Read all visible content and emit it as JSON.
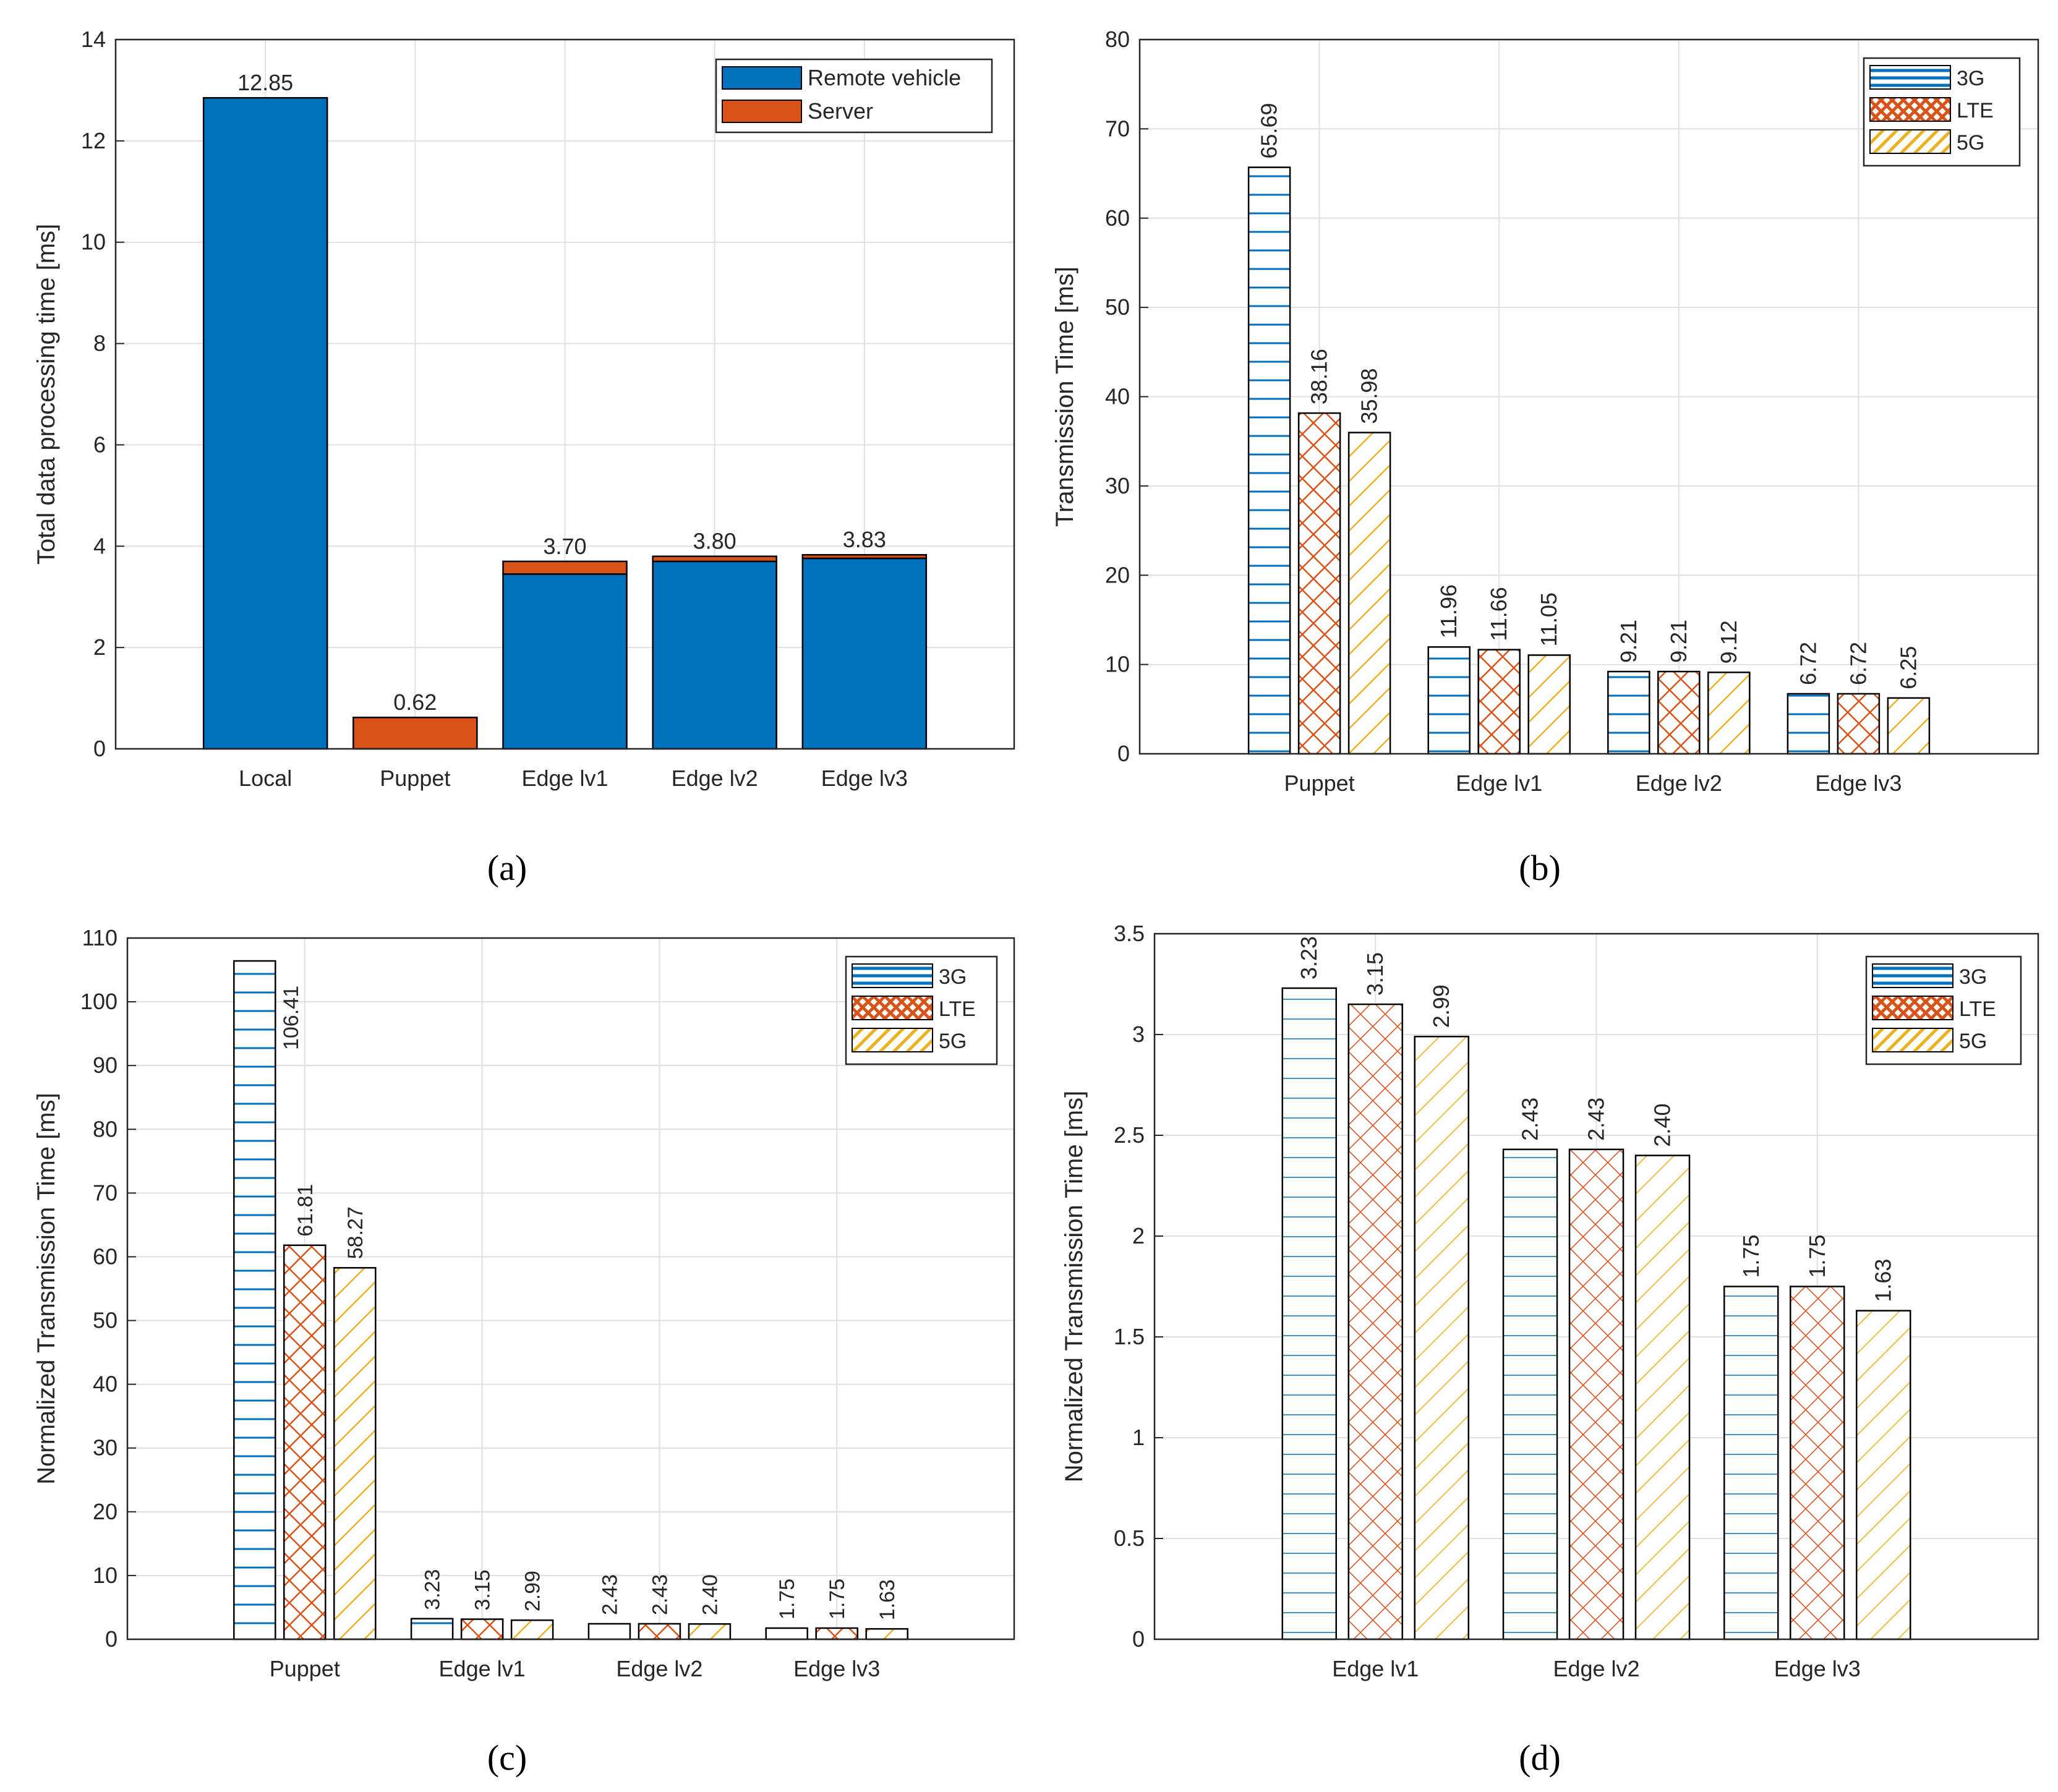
{
  "colors": {
    "remote_vehicle": "#0072BD",
    "server": "#D95319",
    "g3": "#0072BD",
    "lte": "#D95319",
    "g5": "#EDB120",
    "grid": "#E0E0E0",
    "axis": "#262626"
  },
  "chart_data": [
    {
      "id": "a",
      "panel_label": "(a)",
      "type": "bar",
      "stacked": true,
      "categories": [
        "Local",
        "Puppet",
        "Edge lv1",
        "Edge lv2",
        "Edge lv3"
      ],
      "series": [
        {
          "name": "Remote vehicle",
          "values": [
            12.85,
            0,
            3.45,
            3.7,
            3.76
          ]
        },
        {
          "name": "Server",
          "values": [
            0,
            0.62,
            0.25,
            0.1,
            0.07
          ]
        }
      ],
      "data_labels": [
        "12.85",
        "0.62",
        "3.70",
        "3.80",
        "3.83"
      ],
      "ylabel": "Total data processing time [ms]",
      "xlabel": "",
      "ylim": [
        0,
        14
      ],
      "yticks": [
        "0",
        "2",
        "4",
        "6",
        "8",
        "10",
        "12",
        "14"
      ],
      "grid": true,
      "legend": "top-right"
    },
    {
      "id": "b",
      "panel_label": "(b)",
      "type": "bar",
      "categories": [
        "Puppet",
        "Edge lv1",
        "Edge lv2",
        "Edge lv3"
      ],
      "series": [
        {
          "name": "3G",
          "values": [
            65.69,
            11.96,
            9.21,
            6.72
          ],
          "labels": [
            "65.69",
            "11.96",
            "9.21",
            "6.72"
          ]
        },
        {
          "name": "LTE",
          "values": [
            38.16,
            11.66,
            9.21,
            6.72
          ],
          "labels": [
            "38.16",
            "11.66",
            "9.21",
            "6.72"
          ]
        },
        {
          "name": "5G",
          "values": [
            35.98,
            11.05,
            9.12,
            6.25
          ],
          "labels": [
            "35.98",
            "11.05",
            "9.12",
            "6.25"
          ]
        }
      ],
      "ylabel": "Transmission Time [ms]",
      "xlabel": "",
      "ylim": [
        0,
        80
      ],
      "yticks": [
        "0",
        "10",
        "20",
        "30",
        "40",
        "50",
        "60",
        "70",
        "80"
      ],
      "grid": true,
      "legend": "top-right"
    },
    {
      "id": "c",
      "panel_label": "(c)",
      "type": "bar",
      "categories": [
        "Puppet",
        "Edge lv1",
        "Edge lv2",
        "Edge lv3"
      ],
      "series": [
        {
          "name": "3G",
          "values": [
            106.41,
            3.23,
            2.43,
            1.75
          ],
          "labels": [
            "106.41",
            "3.23",
            "2.43",
            "1.75"
          ]
        },
        {
          "name": "LTE",
          "values": [
            61.81,
            3.15,
            2.43,
            1.75
          ],
          "labels": [
            "61.81",
            "3.15",
            "2.43",
            "1.75"
          ]
        },
        {
          "name": "5G",
          "values": [
            58.27,
            2.99,
            2.4,
            1.63
          ],
          "labels": [
            "58.27",
            "2.99",
            "2.40",
            "1.63"
          ]
        }
      ],
      "ylabel": "Normalized Transmission Time [ms]",
      "xlabel": "",
      "ylim": [
        0,
        110
      ],
      "yticks": [
        "0",
        "10",
        "20",
        "30",
        "40",
        "50",
        "60",
        "70",
        "80",
        "90",
        "100",
        "110"
      ],
      "grid": true,
      "legend": "top-right"
    },
    {
      "id": "d",
      "panel_label": "(d)",
      "type": "bar",
      "categories": [
        "Edge lv1",
        "Edge lv2",
        "Edge lv3"
      ],
      "series": [
        {
          "name": "3G",
          "values": [
            3.23,
            2.43,
            1.75
          ],
          "labels": [
            "3.23",
            "2.43",
            "1.75"
          ]
        },
        {
          "name": "LTE",
          "values": [
            3.15,
            2.43,
            1.75
          ],
          "labels": [
            "3.15",
            "2.43",
            "1.75"
          ]
        },
        {
          "name": "5G",
          "values": [
            2.99,
            2.4,
            1.63
          ],
          "labels": [
            "2.99",
            "2.40",
            "1.63"
          ]
        }
      ],
      "ylabel": "Normalized Transmission Time [ms]",
      "xlabel": "",
      "ylim": [
        0,
        3.5
      ],
      "yticks": [
        "0",
        "0.5",
        "1",
        "1.5",
        "2",
        "2.5",
        "3",
        "3.5"
      ],
      "grid": true,
      "legend": "top-right"
    }
  ]
}
